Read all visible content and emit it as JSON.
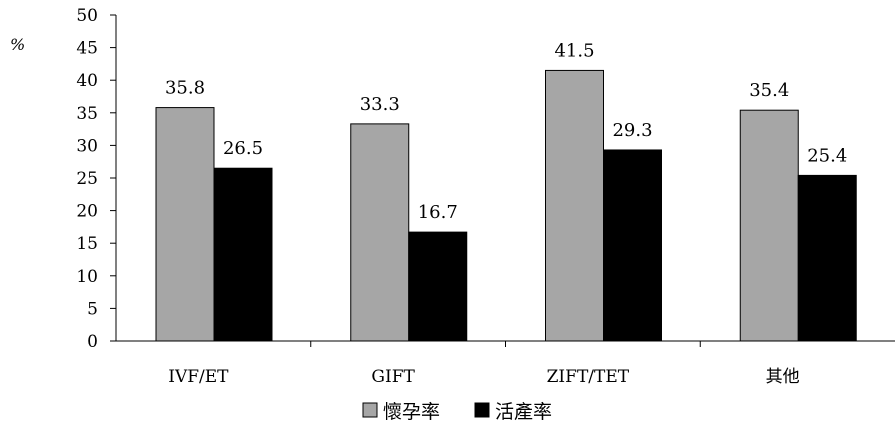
{
  "chart_data": {
    "type": "bar",
    "unit_label": "%",
    "categories": [
      "IVF/ET",
      "GIFT",
      "ZIFT/TET",
      "其他"
    ],
    "series": [
      {
        "name": "懷孕率",
        "values": [
          35.8,
          33.3,
          41.5,
          35.4
        ],
        "color": "#a6a6a6"
      },
      {
        "name": "活產率",
        "values": [
          26.5,
          16.7,
          29.3,
          25.4
        ],
        "color": "#000000"
      }
    ],
    "ylim": [
      0,
      50
    ],
    "yticks": [
      0,
      5,
      10,
      15,
      20,
      25,
      30,
      35,
      40,
      45,
      50
    ],
    "grid": false,
    "legend_position": "bottom"
  }
}
